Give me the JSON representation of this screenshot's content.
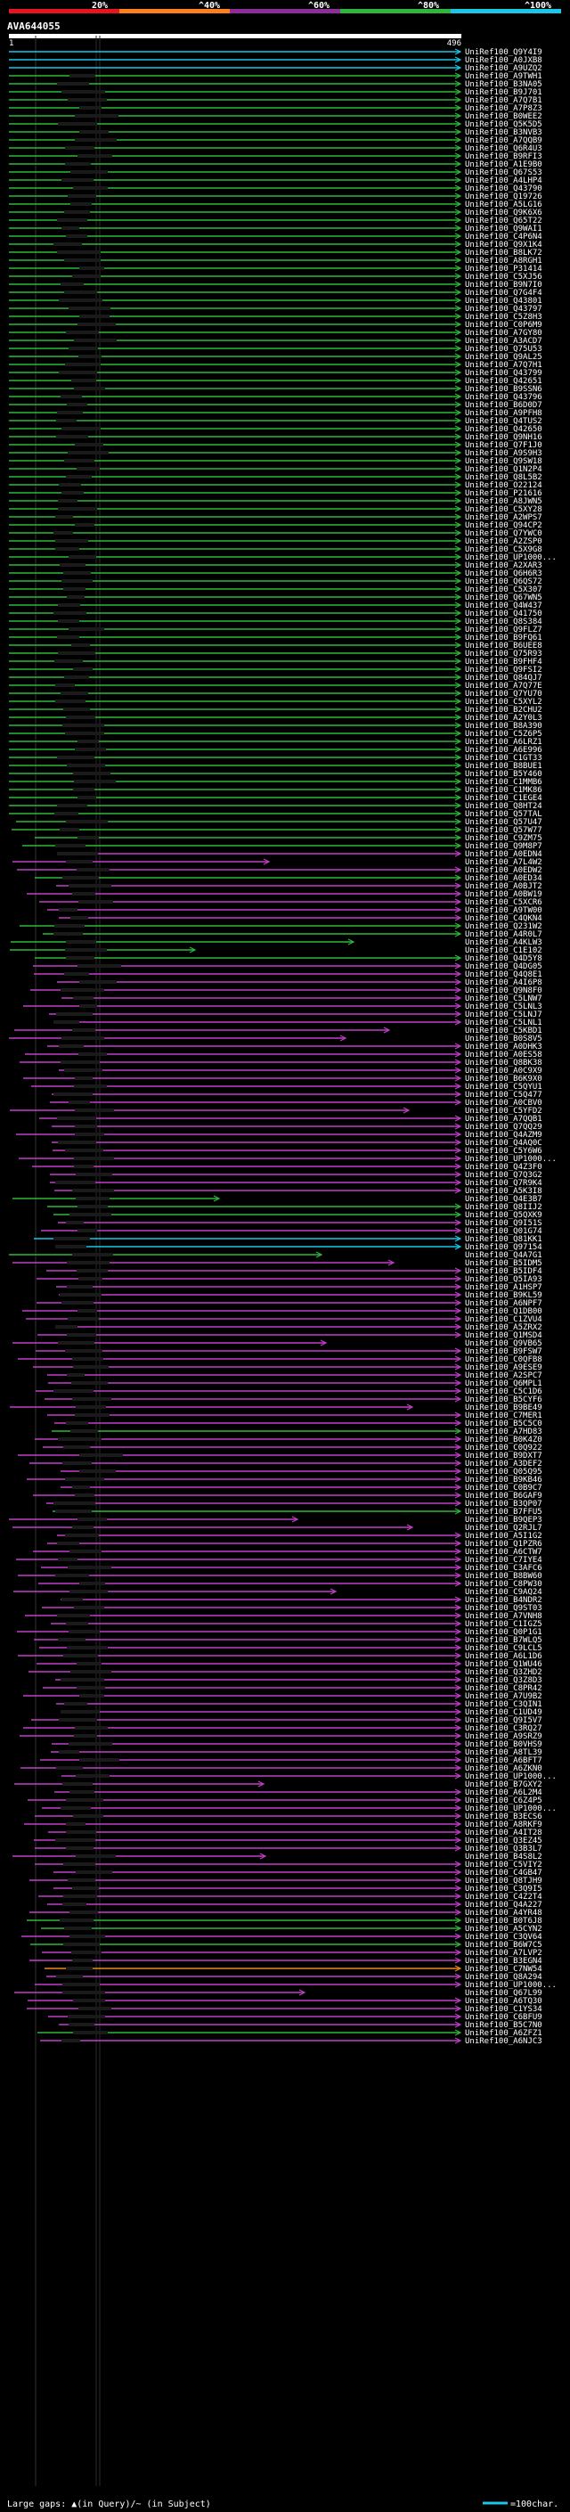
{
  "query_id": "AVA644055",
  "scale": {
    "labels": [
      "20%",
      "^40%",
      "^60%",
      "^80%",
      "^100%"
    ],
    "colors": [
      "#e8141e",
      "#ff7f1a",
      "#8e2c9c",
      "#2fb73a",
      "#18c8e6"
    ]
  },
  "ruler": {
    "start": "1",
    "end": "496"
  },
  "legend": {
    "text": "Large gaps: ▲(in Query)/~ (in Subject)",
    "scale_text": "=100char."
  },
  "alignment_colors": {
    "green": "#2fb73a",
    "magenta": "#c23fc8",
    "cyan": "#18c8e6",
    "orange": "#e88a1a"
  },
  "hits": [
    "UniRef100_Q9Y4I9",
    "UniRef100_A0JXB8",
    "UniRef100_A9UZQ2",
    "UniRef100_A9TWH1",
    "UniRef100_B3NA05",
    "UniRef100_B9J701",
    "UniRef100_A7Q7B1",
    "UniRef100_A7P8Z3",
    "UniRef100_B0WEE2",
    "UniRef100_Q5K5D5",
    "UniRef100_B3NVB3",
    "UniRef100_A7QQB9",
    "UniRef100_Q6R4U3",
    "UniRef100_B9RFI3",
    "UniRef100_A1E9B0",
    "UniRef100_Q67S53",
    "UniRef100_A4LHP4",
    "UniRef100_Q43790",
    "UniRef100_Q19726",
    "UniRef100_A5LG16",
    "UniRef100_Q9K6X6",
    "UniRef100_Q65T22",
    "UniRef100_Q9WAI1",
    "UniRef100_C4P6N4",
    "UniRef100_Q9X1K4",
    "UniRef100_B8LK72",
    "UniRef100_A8RGH1",
    "UniRef100_P31414",
    "UniRef100_C5XJ56",
    "UniRef100_B9N7I0",
    "UniRef100_Q7G4F4",
    "UniRef100_Q43801",
    "UniRef100_Q43797",
    "UniRef100_C5Z8H3",
    "UniRef100_C0P6M9",
    "UniRef100_A7GY80",
    "UniRef100_A3ACD7",
    "UniRef100_Q75U53",
    "UniRef100_Q9AL25",
    "UniRef100_A7Q7H1",
    "UniRef100_Q43799",
    "UniRef100_Q42651",
    "UniRef100_B9SSN6",
    "UniRef100_Q43796",
    "UniRef100_B6D0D7",
    "UniRef100_A9PFH8",
    "UniRef100_Q4TUS2",
    "UniRef100_Q42650",
    "UniRef100_Q9NH16",
    "UniRef100_Q7F1J0",
    "UniRef100_A9S9H3",
    "UniRef100_Q9SW18",
    "UniRef100_Q1N2P4",
    "UniRef100_Q8L5B2",
    "UniRef100_O22124",
    "UniRef100_P21616",
    "UniRef100_A8JWN5",
    "UniRef100_C5XY28",
    "UniRef100_A2WPS7",
    "UniRef100_Q94CP2",
    "UniRef100_Q7YWC0",
    "UniRef100_A2ZSP0",
    "UniRef100_C5X9G8",
    "UniRef100_UP1000...",
    "UniRef100_A2XAR3",
    "UniRef100_Q6H6R3",
    "UniRef100_Q6QS72",
    "UniRef100_C5X307",
    "UniRef100_Q67WN5",
    "UniRef100_Q4W437",
    "UniRef100_Q41750",
    "UniRef100_Q8S384",
    "UniRef100_Q9FLZ7",
    "UniRef100_B9FQ61",
    "UniRef100_B6UEE8",
    "UniRef100_Q75R93",
    "UniRef100_B9FHF4",
    "UniRef100_Q9FSI2",
    "UniRef100_Q84QJ7",
    "UniRef100_A7Q77E",
    "UniRef100_Q7YU70",
    "UniRef100_C5XYL2",
    "UniRef100_B2CHU2",
    "UniRef100_A2Y0L3",
    "UniRef100_B8A390",
    "UniRef100_C5Z6P5",
    "UniRef100_A6LRZ1",
    "UniRef100_A6E996",
    "UniRef100_C1GT33",
    "UniRef100_B8BUE1",
    "UniRef100_B5Y460",
    "UniRef100_C1MMB6",
    "UniRef100_C1MK86",
    "UniRef100_C1EGE4",
    "UniRef100_Q8HT24",
    "UniRef100_Q57TAL",
    "UniRef100_Q57U47",
    "UniRef100_Q57W77",
    "UniRef100_C9ZM75",
    "UniRef100_Q9M8P7",
    "UniRef100_A0EDN4",
    "UniRef100_A7L4W2",
    "UniRef100_A0EDW2",
    "UniRef100_A0ED34",
    "UniRef100_A0BJT2",
    "UniRef100_A0BW19",
    "UniRef100_C5XCR6",
    "UniRef100_A9TW00",
    "UniRef100_C4QKN4",
    "UniRef100_Q231W2",
    "UniRef100_A4R0L7",
    "UniRef100_A4KLW3",
    "UniRef100_C1E102",
    "UniRef100_Q4D5Y8",
    "UniRef100_Q4DG05",
    "UniRef100_Q4Q8E1",
    "UniRef100_A4I6P8",
    "UniRef100_Q9N8F0",
    "UniRef100_C5LNW7",
    "UniRef100_C5LNL3",
    "UniRef100_C5LNJ7",
    "UniRef100_C5LNL1",
    "UniRef100_C5KBD1",
    "UniRef100_B0S8V5",
    "UniRef100_A0DHK3",
    "UniRef100_A0ES58",
    "UniRef100_Q8BK38",
    "UniRef100_A0C9X9",
    "UniRef100_B6K9X0",
    "UniRef100_C5QYU1",
    "UniRef100_C5Q477",
    "UniRef100_A0CBV0",
    "UniRef100_C5YFD2",
    "UniRef100_A7QQB1",
    "UniRef100_Q7QQ29",
    "UniRef100_Q4AZM9",
    "UniRef100_Q4AQ0C",
    "UniRef100_C5Y6W6",
    "UniRef100_UP1000...",
    "UniRef100_Q4Z3F0",
    "UniRef100_Q7Q3G2",
    "UniRef100_Q7R9K4",
    "UniRef100_A5K3I8",
    "UniRef100_Q4E3B7",
    "UniRef100_Q8IIJ2",
    "UniRef100_Q5QXK9",
    "UniRef100_Q9I51S",
    "UniRef100_Q01G74",
    "UniRef100_Q81KK1",
    "UniRef100_Q97154",
    "UniRef100_Q4A7G1",
    "UniRef100_B5IDM5",
    "UniRef100_B5IDF4",
    "UniRef100_Q5IA93",
    "UniRef100_A1HSP7",
    "UniRef100_B9KL59",
    "UniRef100_A6NPF7",
    "UniRef100_Q1DB00",
    "UniRef100_C1ZVU4",
    "UniRef100_A5ZRX2",
    "UniRef100_Q1MSD4",
    "UniRef100_Q9VB65",
    "UniRef100_B9FSW7",
    "UniRef100_C0QFB8",
    "UniRef100_A9ESE9",
    "UniRef100_A2SPC7",
    "UniRef100_Q6MPL1",
    "UniRef100_C5C1D6",
    "UniRef100_B5CYF6",
    "UniRef100_B9BE49",
    "UniRef100_C7MER1",
    "UniRef100_B5C5C0",
    "UniRef100_A7HD83",
    "UniRef100_B0K4Z0",
    "UniRef100_C0Q922",
    "UniRef100_B9DXT7",
    "UniRef100_A3DEF2",
    "UniRef100_Q05Q95",
    "UniRef100_B9KB46",
    "UniRef100_C0B9C7",
    "UniRef100_B6GAF9",
    "UniRef100_B3QP07",
    "UniRef100_B7FFU5",
    "UniRef100_B9QEP3",
    "UniRef100_Q2RJL7",
    "UniRef100_A5I1G2",
    "UniRef100_Q1PZR6",
    "UniRef100_A6CTW7",
    "UniRef100_C7IYE4",
    "UniRef100_C3AFC6",
    "UniRef100_B8BW60",
    "UniRef100_C8PW30",
    "UniRef100_C9AQ24",
    "UniRef100_B4NDR2",
    "UniRef100_Q9ST03",
    "UniRef100_A7VNH8",
    "UniRef100_C1IGZ5",
    "UniRef100_Q0P1G1",
    "UniRef100_B7WLQ5",
    "UniRef100_C9LCL5",
    "UniRef100_A6L1D6",
    "UniRef100_Q1WU46",
    "UniRef100_Q3ZHD2",
    "UniRef100_Q3Z8D3",
    "UniRef100_C8PR42",
    "UniRef100_A7U9B2",
    "UniRef100_C3QIN1",
    "UniRef100_C1UD49",
    "UniRef100_Q9I5V7",
    "UniRef100_C3RQ27",
    "UniRef100_A9SRZ9",
    "UniRef100_B0VHS9",
    "UniRef100_A8TL39",
    "UniRef100_A6BFT7",
    "UniRef100_A6ZKN0",
    "UniRef100_UP1000...",
    "UniRef100_B7GXY2",
    "UniRef100_A6L2M4",
    "UniRef100_C6Z4P5",
    "UniRef100_UP1000...",
    "UniRef100_B3ECS6",
    "UniRef100_A8RKF9",
    "UniRef100_A4IT28",
    "UniRef100_Q3EZ45",
    "UniRef100_Q3B3L7",
    "UniRef100_B4S8L2",
    "UniRef100_C5VIY2",
    "UniRef100_C4GB47",
    "UniRef100_Q8TJH9",
    "UniRef100_C3Q9I5",
    "UniRef100_C4Z2T4",
    "UniRef100_Q4A227",
    "UniRef100_A4YR48",
    "UniRef100_B0T6J8",
    "UniRef100_A5CYN2",
    "UniRef100_C3QV64",
    "UniRef100_B6W7C5",
    "UniRef100_A7LVP2",
    "UniRef100_B3EGN4",
    "UniRef100_C7NW54",
    "UniRef100_Q8A294",
    "UniRef100_UP1000...",
    "UniRef100_Q67L99",
    "UniRef100_A6TQ30",
    "UniRef100_C1YS34",
    "UniRef100_C6BFU9",
    "UniRef100_B5C7N0",
    "UniRef100_A6ZFZ1",
    "UniRef100_A6NJC3"
  ]
}
